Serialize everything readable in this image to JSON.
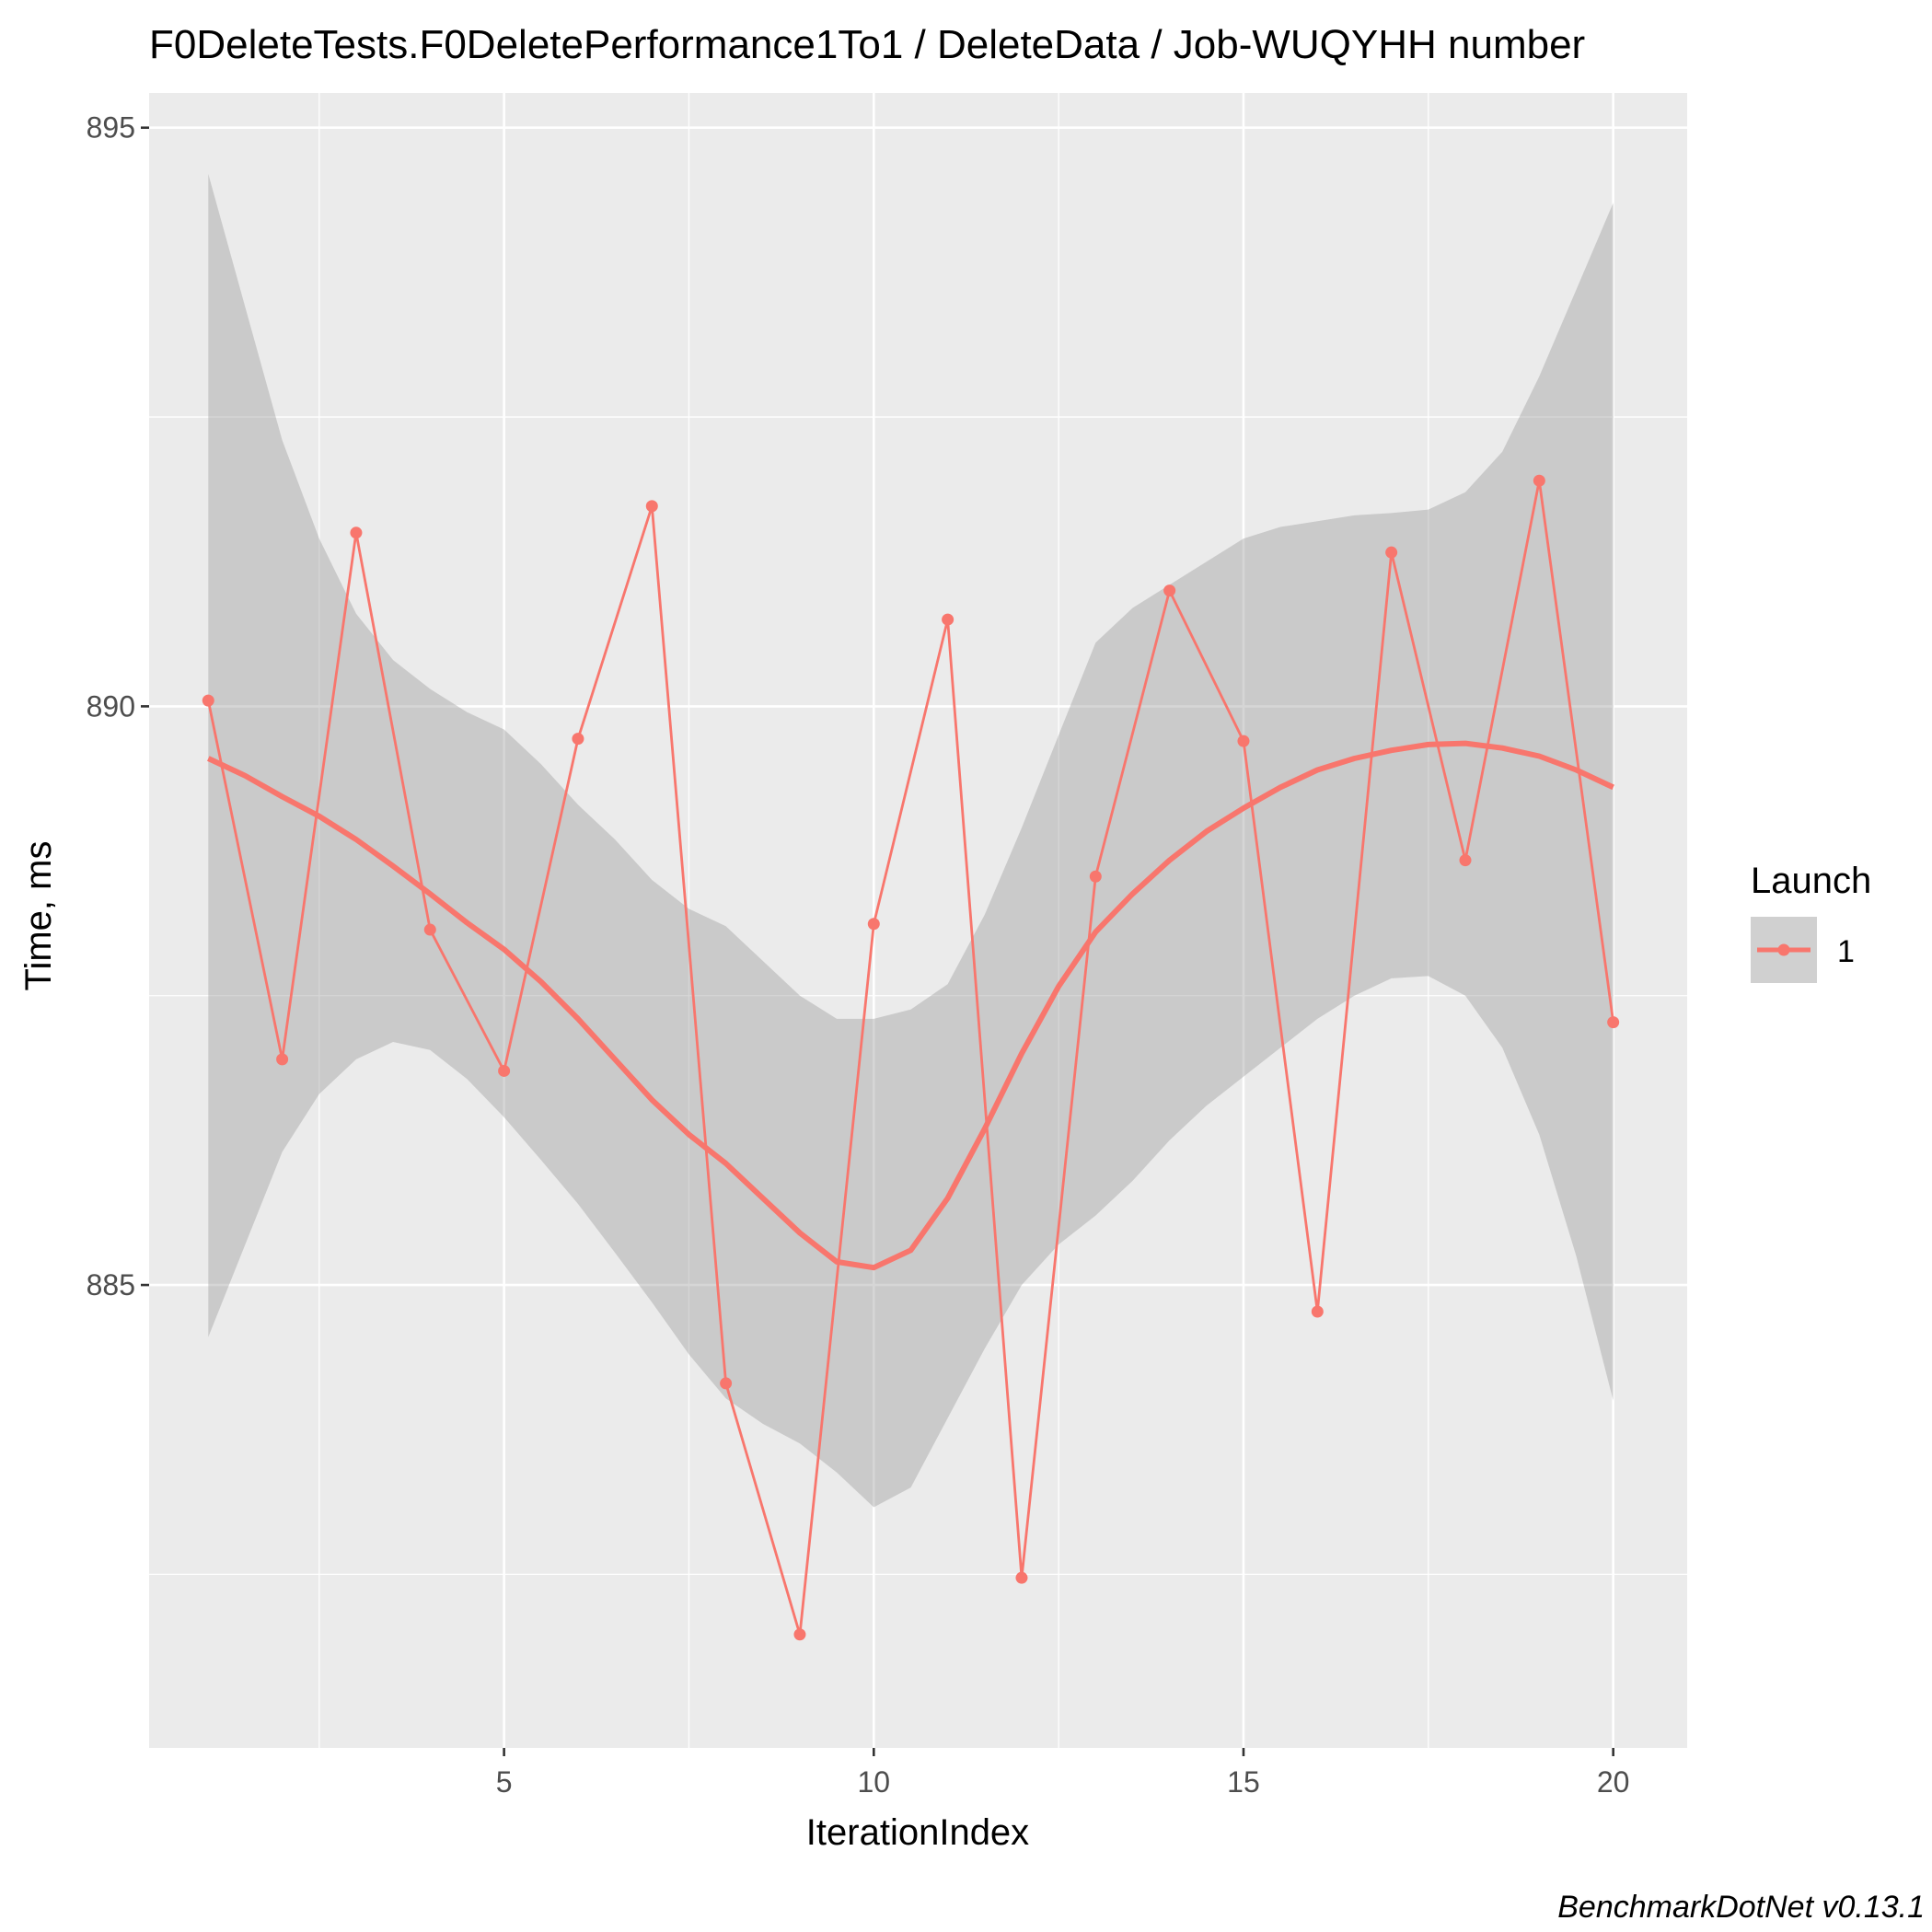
{
  "chart_data": {
    "type": "line",
    "title": "F0DeleteTests.F0DeletePerformance1To1 / DeleteData / Job-WUQYHH number",
    "xlabel": "IterationIndex",
    "ylabel": "Time, ms",
    "caption": "BenchmarkDotNet v0.13.1",
    "xlim": [
      0.2,
      21.0
    ],
    "ylim": [
      881.0,
      895.3
    ],
    "x_ticks": [
      5,
      10,
      15,
      20
    ],
    "x_tick_labels": [
      "5",
      "10",
      "15",
      "20"
    ],
    "x_minor_ticks": [
      2.5,
      7.5,
      12.5,
      17.5
    ],
    "y_ticks": [
      885,
      890,
      895
    ],
    "y_tick_labels": [
      "885",
      "890",
      "895"
    ],
    "y_minor_ticks": [
      882.5,
      887.5,
      892.5
    ],
    "grid": true,
    "legend": {
      "title": "Launch",
      "position": "right",
      "entries": [
        "1"
      ]
    },
    "series": [
      {
        "name": "1",
        "color": "#F8766D",
        "x": [
          1,
          2,
          3,
          4,
          5,
          6,
          7,
          8,
          9,
          10,
          11,
          12,
          13,
          14,
          15,
          16,
          17,
          18,
          19,
          20
        ],
        "y": [
          890.05,
          886.95,
          891.5,
          888.07,
          886.85,
          889.72,
          891.73,
          884.15,
          881.98,
          888.12,
          890.75,
          882.47,
          888.53,
          891.0,
          889.7,
          884.77,
          891.33,
          888.67,
          891.95,
          887.27
        ]
      }
    ],
    "smooth": {
      "color": "#F8766D",
      "ribbon_color": "#999999",
      "x": [
        1,
        1.5,
        2,
        2.5,
        3,
        3.5,
        4,
        4.5,
        5,
        5.5,
        6,
        6.5,
        7,
        7.5,
        8,
        8.5,
        9,
        9.5,
        10,
        10.5,
        11,
        11.5,
        12,
        12.5,
        13,
        13.5,
        14,
        14.5,
        15,
        15.5,
        16,
        16.5,
        17,
        17.5,
        18,
        18.5,
        19,
        19.5,
        20
      ],
      "y": [
        889.55,
        889.4,
        889.22,
        889.05,
        888.85,
        888.62,
        888.38,
        888.13,
        887.9,
        887.62,
        887.3,
        886.95,
        886.6,
        886.3,
        886.05,
        885.75,
        885.45,
        885.2,
        885.15,
        885.3,
        885.75,
        886.35,
        887.0,
        887.58,
        888.05,
        888.38,
        888.67,
        888.92,
        889.12,
        889.3,
        889.45,
        889.55,
        889.62,
        889.67,
        889.68,
        889.64,
        889.57,
        889.45,
        889.3
      ],
      "lower": [
        884.55,
        885.35,
        886.15,
        886.65,
        886.95,
        887.1,
        887.03,
        886.78,
        886.45,
        886.08,
        885.7,
        885.28,
        884.85,
        884.4,
        884.02,
        883.8,
        883.63,
        883.38,
        883.08,
        883.25,
        883.85,
        884.45,
        885.0,
        885.35,
        885.6,
        885.9,
        886.25,
        886.55,
        886.8,
        887.05,
        887.3,
        887.5,
        887.65,
        887.67,
        887.5,
        887.05,
        886.3,
        885.25,
        884.0
      ],
      "upper": [
        894.6,
        893.45,
        892.3,
        891.45,
        890.8,
        890.4,
        890.15,
        889.95,
        889.8,
        889.5,
        889.15,
        888.85,
        888.5,
        888.25,
        888.1,
        887.8,
        887.5,
        887.3,
        887.3,
        887.38,
        887.6,
        888.2,
        888.95,
        889.75,
        890.55,
        890.85,
        891.05,
        891.25,
        891.45,
        891.55,
        891.6,
        891.65,
        891.67,
        891.7,
        891.85,
        892.2,
        892.85,
        893.6,
        894.35
      ]
    }
  }
}
